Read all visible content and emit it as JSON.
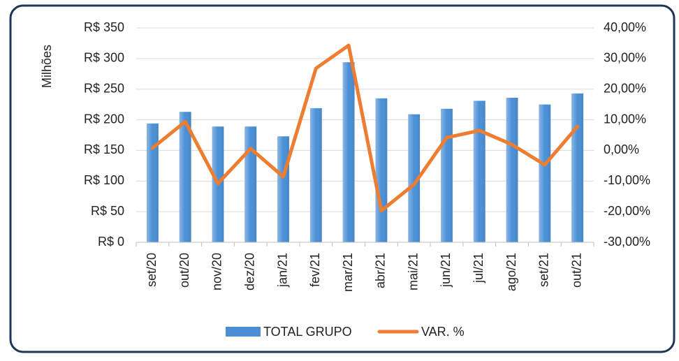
{
  "chart_data": {
    "type": "bar-line",
    "y_label": "Milhões",
    "categories": [
      "set/20",
      "out/20",
      "nov/20",
      "dez/20",
      "jan/21",
      "fev/21",
      "mar/21",
      "abr/21",
      "mai/21",
      "jun/21",
      "jul/21",
      "ago/21",
      "set/21",
      "out/21"
    ],
    "series": [
      {
        "name": "TOTAL GRUPO",
        "type": "bar",
        "color": "#4a8fd6",
        "values": [
          194,
          213,
          189,
          189,
          173,
          219,
          294,
          235,
          209,
          218,
          231,
          236,
          225,
          243
        ]
      },
      {
        "name": "VAR. %",
        "type": "line",
        "axis": "y2",
        "color": "#ed7d31",
        "values": [
          0.8,
          9.4,
          -10.8,
          0.6,
          -8.6,
          26.8,
          34.3,
          -19.7,
          -11.1,
          4.2,
          6.5,
          1.9,
          -4.7,
          7.8
        ]
      }
    ],
    "ylim": [
      0,
      350
    ],
    "yticks": [
      {
        "value": 0,
        "label": "R$ 0"
      },
      {
        "value": 50,
        "label": "R$ 50"
      },
      {
        "value": 100,
        "label": "R$ 100"
      },
      {
        "value": 150,
        "label": "R$ 150"
      },
      {
        "value": 200,
        "label": "R$ 200"
      },
      {
        "value": 250,
        "label": "R$ 250"
      },
      {
        "value": 300,
        "label": "R$ 300"
      },
      {
        "value": 350,
        "label": "R$ 350"
      }
    ],
    "y2lim": [
      -30,
      40
    ],
    "y2ticks": [
      {
        "value": -30,
        "label": "-30,00%"
      },
      {
        "value": -20,
        "label": "-20,00%"
      },
      {
        "value": -10,
        "label": "-10,00%"
      },
      {
        "value": 0,
        "label": "0,00%"
      },
      {
        "value": 10,
        "label": "10,00%"
      },
      {
        "value": 20,
        "label": "20,00%"
      },
      {
        "value": 30,
        "label": "30,00%"
      },
      {
        "value": 40,
        "label": "40,00%"
      }
    ],
    "grid": true,
    "legend": "bottom"
  }
}
